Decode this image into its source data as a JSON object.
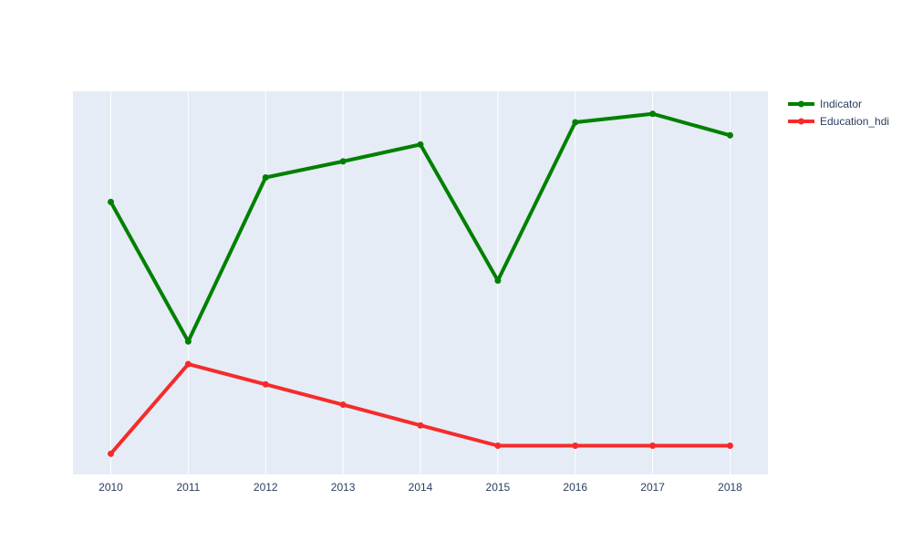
{
  "chart_data": {
    "type": "line",
    "title": "",
    "xlabel": "",
    "ylabel": "",
    "x": [
      "2010",
      "2011",
      "2012",
      "2013",
      "2014",
      "2015",
      "2016",
      "2017",
      "2018"
    ],
    "ylim": [
      0,
      1
    ],
    "grid": true,
    "legend_position": "top-right",
    "series": [
      {
        "name": "Indicator",
        "color": "#008000",
        "values": [
          0.711,
          0.347,
          0.775,
          0.817,
          0.861,
          0.506,
          0.919,
          0.941,
          0.885
        ]
      },
      {
        "name": "Education_hdi",
        "color": "#f52b2b",
        "values": [
          0.054,
          0.288,
          0.235,
          0.182,
          0.128,
          0.075,
          0.075,
          0.075,
          0.075
        ]
      }
    ]
  },
  "style": {
    "plot_bg": "#e5ecf6",
    "grid_color": "#ffffff",
    "text_color": "#2a3f5f"
  }
}
